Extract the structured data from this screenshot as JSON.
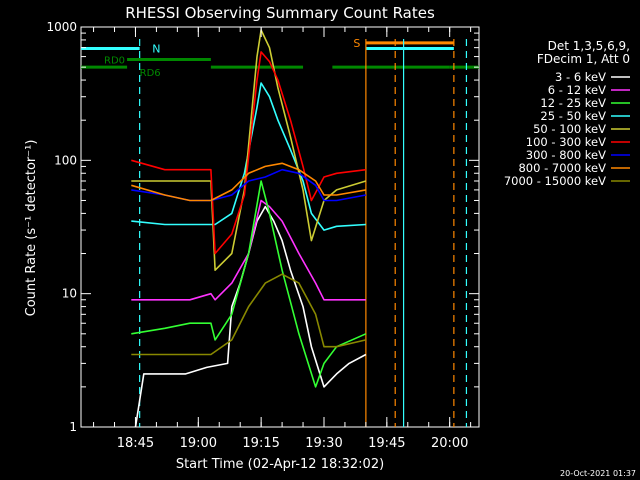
{
  "chart_data": {
    "type": "line",
    "title": "RHESSI Observing Summary Count Rates",
    "xlabel": "Start Time (02-Apr-12 18:32:02)",
    "ylabel": "Count Rate (s⁻¹ detector⁻¹)",
    "yscale": "log",
    "ylim": [
      1,
      1000
    ],
    "xlim_minutes_after_start": [
      0,
      95
    ],
    "x_ticks": [
      "18:45",
      "19:00",
      "19:15",
      "19:30",
      "19:45",
      "20:00"
    ],
    "y_ticks": [
      "1",
      "10",
      "100",
      "1000"
    ],
    "timestamp": "20-Oct-2021 01:37",
    "legend_header": [
      "Det 1,3,5,6,9,",
      "FDecim 1, Att 0"
    ],
    "legend_placement": "right",
    "series": [
      {
        "name": "3 - 6 keV",
        "color": "#ffffff",
        "x": [
          13,
          15,
          20,
          25,
          30,
          35,
          36,
          38,
          40,
          42,
          44,
          46,
          48,
          50,
          53,
          55,
          58,
          61,
          64,
          68
        ],
        "y": [
          1.0,
          2.5,
          2.5,
          2.5,
          2.8,
          3.0,
          8,
          12,
          20,
          35,
          45,
          35,
          25,
          15,
          8,
          4,
          2.0,
          2.5,
          3.0,
          3.5
        ]
      },
      {
        "name": "6 - 12 keV",
        "color": "#ff33ff",
        "x": [
          12,
          20,
          26,
          31,
          32,
          36,
          40,
          43,
          45,
          48,
          52,
          56,
          58,
          61,
          68
        ],
        "y": [
          9,
          9,
          9,
          10,
          9,
          12,
          20,
          50,
          45,
          35,
          20,
          12,
          9,
          9,
          9
        ]
      },
      {
        "name": "12 - 25 keV",
        "color": "#33ff33",
        "x": [
          12,
          20,
          26,
          31,
          32,
          36,
          40,
          43,
          45,
          48,
          52,
          56,
          58,
          61,
          68
        ],
        "y": [
          5,
          5.5,
          6,
          6,
          4.5,
          7,
          20,
          70,
          40,
          15,
          5,
          2.0,
          3,
          4,
          5
        ]
      },
      {
        "name": "25 - 50 keV",
        "color": "#33ffff",
        "x": [
          12,
          20,
          26,
          31,
          32,
          36,
          39,
          42,
          43,
          45,
          47,
          50,
          53,
          55,
          58,
          61,
          68
        ],
        "y": [
          35,
          33,
          33,
          33,
          33,
          40,
          80,
          250,
          380,
          300,
          200,
          120,
          70,
          40,
          30,
          32,
          33
        ]
      },
      {
        "name": "50 - 100 keV",
        "color": "#cccc33",
        "x": [
          12,
          20,
          26,
          31,
          32,
          36,
          39,
          42,
          43,
          45,
          47,
          50,
          53,
          55,
          58,
          61,
          68
        ],
        "y": [
          70,
          70,
          70,
          70,
          15,
          20,
          60,
          600,
          950,
          700,
          350,
          150,
          60,
          25,
          50,
          60,
          70
        ]
      },
      {
        "name": "100 - 300 keV",
        "color": "#ff0000",
        "x": [
          12,
          20,
          26,
          31,
          32,
          36,
          39,
          42,
          43,
          45,
          47,
          50,
          53,
          55,
          58,
          61,
          68
        ],
        "y": [
          100,
          85,
          85,
          85,
          20,
          28,
          55,
          400,
          650,
          550,
          400,
          200,
          90,
          50,
          75,
          80,
          85
        ]
      },
      {
        "name": "300 - 800 keV",
        "color": "#0000ff",
        "x": [
          12,
          20,
          26,
          31,
          36,
          40,
          44,
          48,
          52,
          56,
          58,
          61,
          68
        ],
        "y": [
          60,
          55,
          50,
          50,
          55,
          70,
          75,
          85,
          80,
          65,
          50,
          50,
          55
        ]
      },
      {
        "name": "800 - 7000 keV",
        "color": "#ff8800",
        "x": [
          12,
          20,
          26,
          31,
          36,
          40,
          44,
          48,
          52,
          56,
          58,
          61,
          68
        ],
        "y": [
          65,
          55,
          50,
          50,
          60,
          80,
          90,
          95,
          85,
          70,
          55,
          55,
          60
        ]
      },
      {
        "name": "7000 - 15000 keV",
        "color": "#888800",
        "x": [
          12,
          20,
          26,
          31,
          36,
          40,
          44,
          48,
          52,
          56,
          58,
          61,
          68
        ],
        "y": [
          3.5,
          3.5,
          3.5,
          3.5,
          4.5,
          8,
          12,
          14,
          12,
          7,
          4,
          4,
          4.5
        ]
      }
    ],
    "bars": [
      {
        "label": "",
        "color": "#33ffff",
        "segments": [
          [
            0,
            14
          ],
          [
            68,
            89
          ]
        ],
        "level": 690
      },
      {
        "label": "N",
        "color": "#33ffff",
        "segments": [],
        "level": 690
      },
      {
        "label": "RD0",
        "color": "#008800",
        "segments": [
          [
            11,
            31
          ]
        ],
        "level": 570
      },
      {
        "label": "RD6",
        "color": "#008800",
        "segments": [
          [
            0,
            11
          ],
          [
            31,
            53
          ],
          [
            60,
            88
          ],
          [
            88,
            95
          ]
        ],
        "level": 500
      },
      {
        "label": "S",
        "color": "#ff8800",
        "segments": [
          [
            68,
            89
          ]
        ],
        "level": 760
      }
    ],
    "vlines": [
      {
        "x": 14,
        "color": "#33ffff",
        "style": "dashed"
      },
      {
        "x": 68,
        "color": "#ff8800",
        "style": "solid"
      },
      {
        "x": 75,
        "color": "#ff8800",
        "style": "dashed"
      },
      {
        "x": 77,
        "color": "#33ffff",
        "style": "solid"
      },
      {
        "x": 89,
        "color": "#ff8800",
        "style": "dashed"
      },
      {
        "x": 92,
        "color": "#33ffff",
        "style": "dashed"
      }
    ]
  }
}
